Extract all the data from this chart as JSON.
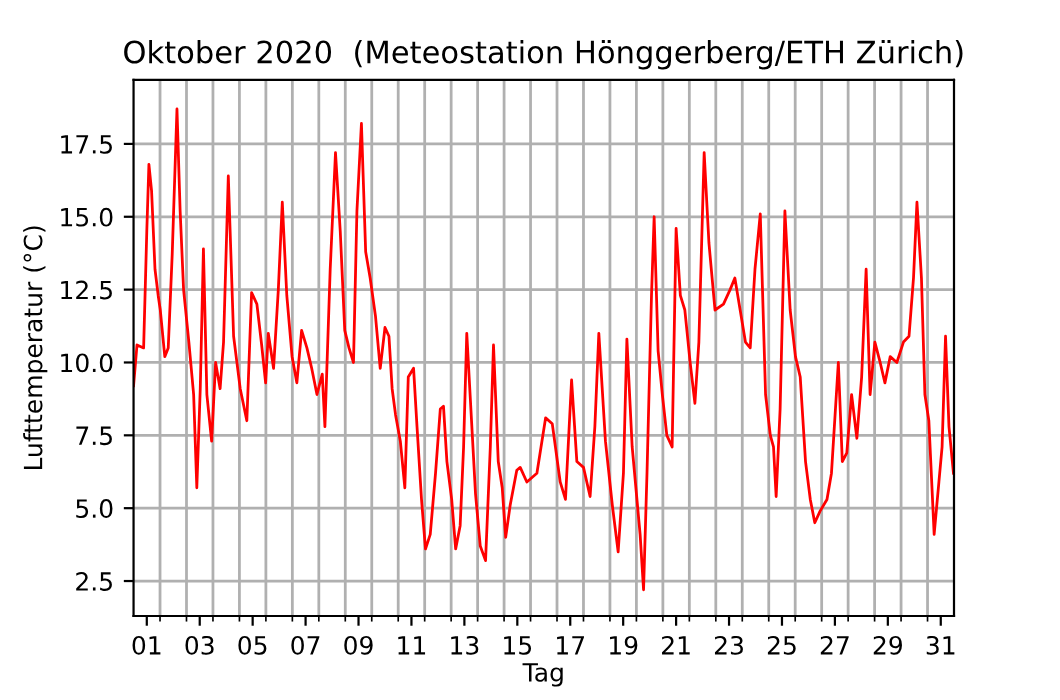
{
  "chart_data": {
    "type": "line",
    "title": "Oktober 2020  (Meteostation Hönggerberg/ETH Zürich)",
    "xlabel": "Tag",
    "ylabel": "Lufttemperatur (°C)",
    "series": [
      {
        "color": "#ff0000",
        "x": [
          1.0,
          1.13,
          1.38,
          1.5,
          1.58,
          1.68,
          1.81,
          1.93,
          2.01,
          2.18,
          2.31,
          2.46,
          2.64,
          2.76,
          2.89,
          3.09,
          3.27,
          3.39,
          3.52,
          3.64,
          3.77,
          3.95,
          4.1,
          4.27,
          4.4,
          4.58,
          4.78,
          5.03,
          5.28,
          5.46,
          5.66,
          5.84,
          5.99,
          6.09,
          6.29,
          6.47,
          6.62,
          6.79,
          6.99,
          7.17,
          7.35,
          7.55,
          7.73,
          7.93,
          8.13,
          8.23,
          8.43,
          8.63,
          8.81,
          8.98,
          9.14,
          9.31,
          9.44,
          9.61,
          9.77,
          9.94,
          10.14,
          10.32,
          10.5,
          10.65,
          10.77,
          10.9,
          11.08,
          11.25,
          11.38,
          11.58,
          11.71,
          11.88,
          12.03,
          12.21,
          12.41,
          12.59,
          12.71,
          12.84,
          13.02,
          13.17,
          13.34,
          13.47,
          13.59,
          13.77,
          13.92,
          14.1,
          14.3,
          14.48,
          14.6,
          14.78,
          14.93,
          15.06,
          15.23,
          15.48,
          15.61,
          15.86,
          16.24,
          16.57,
          16.82,
          17.12,
          17.32,
          17.55,
          17.75,
          18.0,
          18.25,
          18.43,
          18.58,
          18.83,
          19.09,
          19.31,
          19.51,
          19.64,
          19.84,
          20.07,
          20.14,
          20.27,
          20.4,
          20.57,
          20.67,
          20.82,
          20.98,
          21.15,
          21.35,
          21.5,
          21.66,
          21.83,
          22.03,
          22.21,
          22.36,
          22.56,
          22.74,
          22.97,
          23.29,
          23.54,
          23.72,
          23.92,
          24.12,
          24.3,
          24.48,
          24.68,
          24.88,
          25.06,
          25.18,
          25.28,
          25.43,
          25.61,
          25.81,
          26.01,
          26.19,
          26.39,
          26.57,
          26.74,
          26.94,
          27.2,
          27.37,
          27.63,
          27.78,
          27.95,
          28.13,
          28.33,
          28.51,
          28.68,
          28.83,
          29.01,
          29.21,
          29.39,
          29.59,
          29.84,
          30.09,
          30.3,
          30.47,
          30.6,
          30.77,
          30.9,
          31.05,
          31.25,
          31.43,
          31.55,
          31.68,
          31.81,
          31.98
        ],
        "values": [
          9.2,
          10.6,
          10.5,
          14.5,
          16.8,
          15.9,
          13.2,
          12.3,
          11.8,
          10.2,
          10.5,
          13.7,
          18.7,
          15.2,
          12.5,
          10.7,
          8.9,
          5.7,
          9.1,
          13.9,
          8.9,
          7.3,
          10.0,
          9.1,
          10.7,
          16.4,
          10.9,
          9.1,
          8.0,
          12.4,
          12.0,
          10.6,
          9.3,
          11.0,
          9.8,
          12.5,
          15.5,
          12.3,
          10.2,
          9.3,
          11.1,
          10.5,
          9.8,
          8.9,
          9.6,
          7.8,
          13.2,
          17.2,
          14.5,
          11.1,
          10.5,
          10.0,
          15.2,
          18.2,
          13.8,
          12.9,
          11.6,
          9.8,
          11.2,
          10.9,
          9.1,
          8.2,
          7.3,
          5.7,
          9.5,
          9.8,
          7.8,
          5.3,
          3.6,
          4.1,
          6.2,
          8.4,
          8.5,
          6.6,
          5.3,
          3.6,
          4.4,
          7.1,
          11.0,
          8.0,
          5.5,
          3.7,
          3.2,
          7.1,
          10.6,
          6.6,
          5.7,
          4.0,
          5.1,
          6.3,
          6.4,
          5.9,
          6.2,
          8.1,
          7.9,
          5.9,
          5.3,
          9.4,
          6.6,
          6.4,
          5.4,
          7.8,
          11.0,
          7.3,
          5.1,
          3.5,
          6.2,
          10.8,
          7.1,
          4.8,
          4.1,
          2.2,
          6.2,
          12.3,
          15.0,
          10.4,
          8.9,
          7.5,
          7.1,
          14.6,
          12.3,
          11.8,
          10.0,
          8.6,
          10.7,
          17.2,
          14.1,
          11.8,
          12.0,
          12.5,
          12.9,
          11.8,
          10.7,
          10.5,
          13.2,
          15.1,
          8.9,
          7.5,
          7.1,
          5.4,
          8.4,
          15.2,
          11.8,
          10.2,
          9.5,
          6.6,
          5.3,
          4.5,
          4.9,
          5.3,
          6.2,
          10.0,
          6.6,
          6.9,
          8.9,
          7.4,
          9.5,
          13.2,
          8.9,
          10.7,
          10.0,
          9.3,
          10.2,
          10.0,
          10.7,
          10.9,
          12.9,
          15.5,
          12.9,
          8.9,
          8.0,
          4.1,
          5.9,
          7.1,
          10.9,
          7.8,
          6.2
        ]
      }
    ],
    "xlim": [
      1,
      32
    ],
    "ylim": [
      1.3,
      19.7
    ],
    "xticks": [
      {
        "value": 1.5,
        "label": "01"
      },
      {
        "value": 3.5,
        "label": "03"
      },
      {
        "value": 5.5,
        "label": "05"
      },
      {
        "value": 7.5,
        "label": "07"
      },
      {
        "value": 9.5,
        "label": "09"
      },
      {
        "value": 11.5,
        "label": "11"
      },
      {
        "value": 13.5,
        "label": "13"
      },
      {
        "value": 15.5,
        "label": "15"
      },
      {
        "value": 17.5,
        "label": "17"
      },
      {
        "value": 19.5,
        "label": "19"
      },
      {
        "value": 21.5,
        "label": "21"
      },
      {
        "value": 23.5,
        "label": "23"
      },
      {
        "value": 25.5,
        "label": "25"
      },
      {
        "value": 27.5,
        "label": "27"
      },
      {
        "value": 29.5,
        "label": "29"
      },
      {
        "value": 31.5,
        "label": "31"
      },
      {
        "value": 2,
        "label": null
      },
      {
        "value": 3,
        "label": null
      },
      {
        "value": 4,
        "label": null
      },
      {
        "value": 5,
        "label": null
      },
      {
        "value": 6,
        "label": null
      },
      {
        "value": 7,
        "label": null
      },
      {
        "value": 8,
        "label": null
      },
      {
        "value": 9,
        "label": null
      },
      {
        "value": 10,
        "label": null
      },
      {
        "value": 11,
        "label": null
      },
      {
        "value": 12,
        "label": null
      },
      {
        "value": 13,
        "label": null
      },
      {
        "value": 14,
        "label": null
      },
      {
        "value": 15,
        "label": null
      },
      {
        "value": 16,
        "label": null
      },
      {
        "value": 17,
        "label": null
      },
      {
        "value": 18,
        "label": null
      },
      {
        "value": 19,
        "label": null
      },
      {
        "value": 20,
        "label": null
      },
      {
        "value": 21,
        "label": null
      },
      {
        "value": 22,
        "label": null
      },
      {
        "value": 23,
        "label": null
      },
      {
        "value": 24,
        "label": null
      },
      {
        "value": 25,
        "label": null
      },
      {
        "value": 26,
        "label": null
      },
      {
        "value": 27,
        "label": null
      },
      {
        "value": 28,
        "label": null
      },
      {
        "value": 29,
        "label": null
      },
      {
        "value": 30,
        "label": null
      },
      {
        "value": 31,
        "label": null
      }
    ],
    "yticks": [
      2.5,
      {
        "value": 5,
        "label": "5.0"
      },
      7.5,
      {
        "value": 10,
        "label": "10.0"
      },
      12.5,
      {
        "value": 15,
        "label": "15.0"
      },
      17.5
    ],
    "grid": true,
    "marker": "none",
    "line_style": "solid"
  }
}
